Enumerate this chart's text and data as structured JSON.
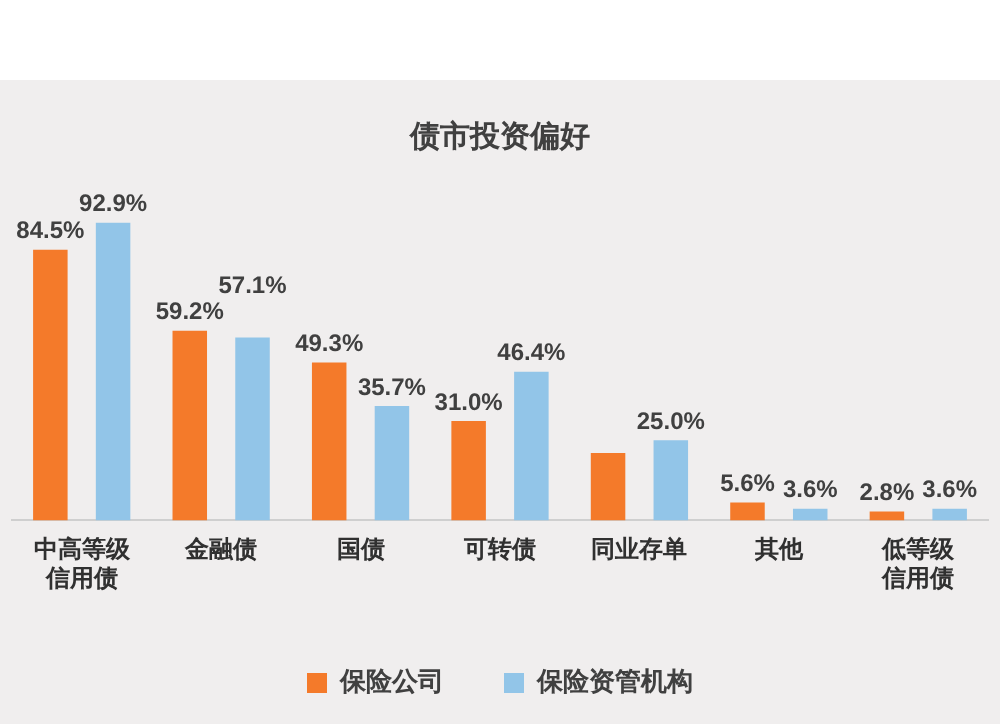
{
  "chart_data": {
    "type": "bar",
    "title": "债市投资偏好",
    "categories": [
      "中高等级信用债",
      "金融债",
      "国债",
      "可转债",
      "同业存单",
      "其他",
      "低等级信用债"
    ],
    "series": [
      {
        "name": "保险公司",
        "color": "#f47a2a",
        "values": [
          84.5,
          59.2,
          49.3,
          31.0,
          21.0,
          5.6,
          2.8
        ],
        "value_labels": [
          "84.5%",
          "59.2%",
          "49.3%",
          "31.0%",
          null,
          "5.6%",
          "2.8%"
        ]
      },
      {
        "name": "保险资管机构",
        "color": "#92c5e8",
        "values": [
          92.9,
          57.1,
          35.7,
          46.4,
          25.0,
          3.6,
          3.6
        ],
        "value_labels": [
          "92.9%",
          "57.1%",
          "35.7%",
          "46.4%",
          "25.0%",
          "3.6%",
          "3.6%"
        ]
      }
    ],
    "legend": "bottom",
    "grid": false
  }
}
